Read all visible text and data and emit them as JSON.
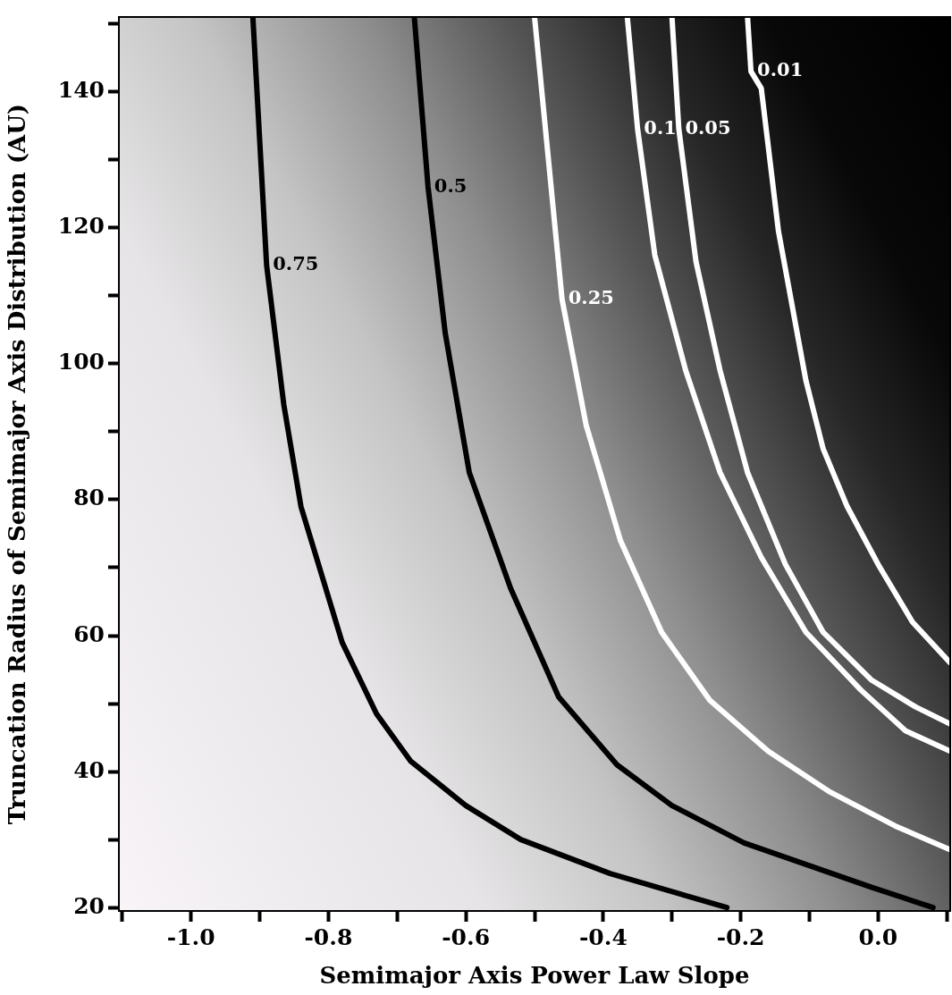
{
  "chart_data": {
    "type": "line",
    "xlabel": "Semimajor Axis Power Law Slope",
    "ylabel": "Truncation Radius of Semimajor Axis Distribution (AU)",
    "xlim": [
      -1.105,
      0.105
    ],
    "ylim": [
      19.5,
      151
    ],
    "xticks": [
      {
        "value": -1.1,
        "label": null
      },
      {
        "value": -1.0,
        "label": "-1.0"
      },
      {
        "value": -0.9,
        "label": null
      },
      {
        "value": -0.8,
        "label": "-0.8"
      },
      {
        "value": -0.7,
        "label": null
      },
      {
        "value": -0.6,
        "label": "-0.6"
      },
      {
        "value": -0.5,
        "label": null
      },
      {
        "value": -0.4,
        "label": "-0.4"
      },
      {
        "value": -0.3,
        "label": null
      },
      {
        "value": -0.2,
        "label": "-0.2"
      },
      {
        "value": -0.1,
        "label": null
      },
      {
        "value": 0.0,
        "label": "0.0"
      },
      {
        "value": 0.1,
        "label": null
      }
    ],
    "yticks": [
      20,
      {
        "value": 30,
        "label": null
      },
      40,
      {
        "value": 50,
        "label": null
      },
      60,
      {
        "value": 70,
        "label": null
      },
      80,
      {
        "value": 90,
        "label": null
      },
      100,
      {
        "value": 110,
        "label": null
      },
      120,
      {
        "value": 130,
        "label": null
      },
      140,
      {
        "value": 150,
        "label": null
      }
    ],
    "grid": false,
    "legend": false,
    "series": [
      {
        "name": "0.75",
        "color": "#000000",
        "x": [
          -0.91,
          -0.89,
          -0.865,
          -0.84,
          -0.78,
          -0.73,
          -0.68,
          -0.6,
          -0.52,
          -0.39,
          -0.22
        ],
        "values": [
          151,
          114.5,
          94,
          79,
          59,
          48.5,
          41.5,
          35,
          30,
          25,
          20
        ]
      },
      {
        "name": "0.5",
        "color": "#000000",
        "x": [
          -0.675,
          -0.655,
          -0.63,
          -0.595,
          -0.535,
          -0.465,
          -0.38,
          -0.3,
          -0.195,
          -0.095,
          -0.01,
          0.08
        ],
        "values": [
          151,
          126,
          104.5,
          84,
          67,
          51,
          41,
          35,
          29.5,
          26,
          23,
          20
        ]
      },
      {
        "name": "0.25",
        "color": "#ffffff",
        "x": [
          -0.5,
          -0.46,
          -0.425,
          -0.375,
          -0.315,
          -0.245,
          -0.16,
          -0.07,
          0.025,
          0.105
        ],
        "values": [
          151,
          109.5,
          91,
          74,
          60.5,
          50.5,
          43,
          37,
          32,
          28.5
        ]
      },
      {
        "name": "0.1",
        "color": "#ffffff",
        "x": [
          -0.365,
          -0.35,
          -0.325,
          -0.28,
          -0.23,
          -0.17,
          -0.105,
          -0.025,
          0.04,
          0.105
        ],
        "values": [
          151,
          134.5,
          116,
          99,
          84,
          71.5,
          60.5,
          52,
          46,
          43
        ]
      },
      {
        "name": "0.05",
        "color": "#ffffff",
        "x": [
          -0.3,
          -0.29,
          -0.265,
          -0.23,
          -0.19,
          -0.135,
          -0.08,
          -0.01,
          0.055,
          0.105
        ],
        "values": [
          151,
          134.5,
          115,
          99,
          84,
          70.5,
          60.5,
          53.5,
          49.5,
          47
        ]
      },
      {
        "name": "0.01",
        "color": "#ffffff",
        "x": [
          -0.19,
          -0.185,
          -0.17,
          -0.145,
          -0.105,
          -0.08,
          -0.045,
          0.0,
          0.05,
          0.105
        ],
        "values": [
          151,
          143,
          140.5,
          119.5,
          97.5,
          87.5,
          79,
          70.5,
          62,
          56
        ]
      }
    ]
  }
}
